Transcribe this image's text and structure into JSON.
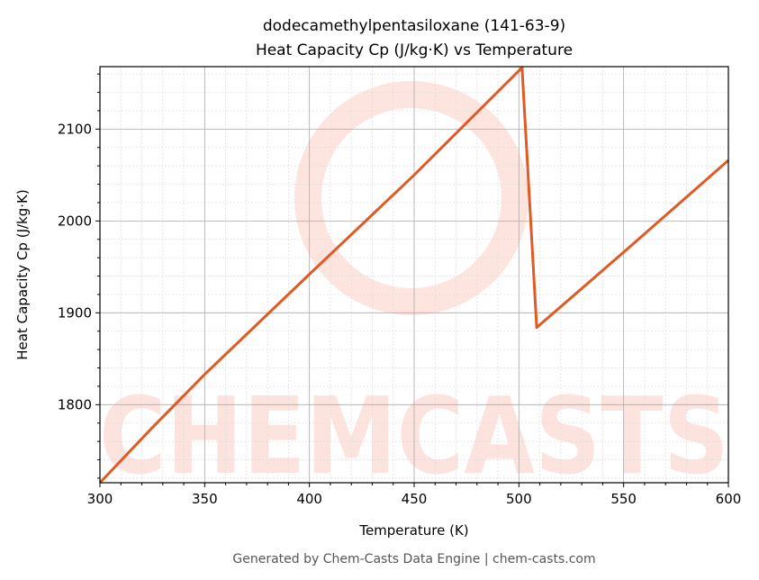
{
  "chart_data": {
    "type": "line",
    "title": "dodecamethylpentasiloxane (141-63-9)",
    "subtitle": "Heat Capacity Cp (J/kg·K) vs Temperature",
    "xlabel": "Temperature (K)",
    "ylabel": "Heat Capacity Cp (J/kg·K)",
    "xlim": [
      300,
      600
    ],
    "ylim": [
      1715,
      2168
    ],
    "xticks": [
      300,
      350,
      400,
      450,
      500,
      550,
      600
    ],
    "yticks": [
      1800,
      1900,
      2000,
      2100
    ],
    "grid": true,
    "series": [
      {
        "color": "#e05a23",
        "x": [
          300,
          325,
          350,
          400,
          450,
          501.5,
          508.5,
          550,
          600
        ],
        "y": [
          1715,
          1775,
          1833,
          1942,
          2050,
          2167,
          1884,
          1966,
          2066
        ]
      }
    ]
  },
  "watermark": "CHEMCASTS",
  "footer": "Generated by Chem-Casts Data Engine | chem-casts.com"
}
